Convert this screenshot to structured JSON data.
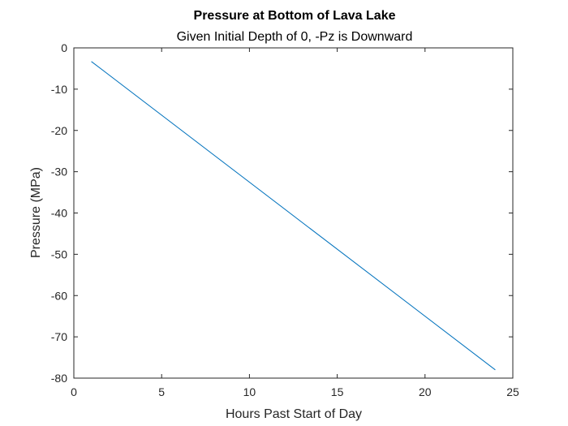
{
  "chart_data": {
    "type": "line",
    "title": "Pressure at Bottom of Lava Lake",
    "subtitle": "Given Initial Depth of 0, -Pz is Downward",
    "xlabel": "Hours Past Start of Day",
    "ylabel": "Pressure (MPa)",
    "xlim": [
      0,
      25
    ],
    "ylim": [
      -80,
      0
    ],
    "xticks": [
      0,
      5,
      10,
      15,
      20,
      25
    ],
    "yticks": [
      0,
      -10,
      -20,
      -30,
      -40,
      -50,
      -60,
      -70,
      -80
    ],
    "grid": false,
    "series": [
      {
        "color": "#0072BD",
        "x": [
          1,
          24
        ],
        "y": [
          -3.3,
          -78.0
        ]
      }
    ]
  }
}
